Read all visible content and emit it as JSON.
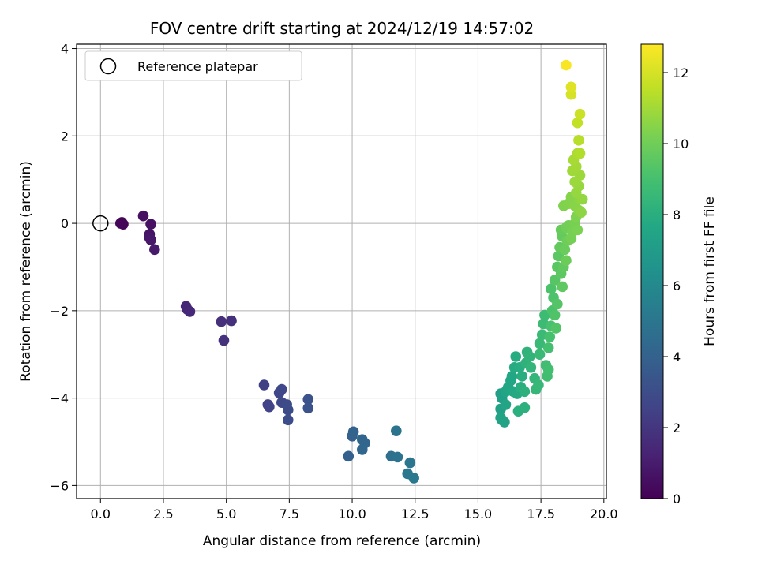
{
  "chart_data": {
    "type": "scatter",
    "title": "FOV centre drift starting at 2024/12/19 14:57:02",
    "xlabel": "Angular distance from reference (arcmin)",
    "ylabel": "Rotation from reference (arcmin)",
    "xlim": [
      -0.95,
      20.1
    ],
    "ylim": [
      -6.3,
      4.1
    ],
    "xticks": [
      0.0,
      2.5,
      5.0,
      7.5,
      10.0,
      12.5,
      15.0,
      17.5,
      20.0
    ],
    "xtick_labels": [
      "0.0",
      "2.5",
      "5.0",
      "7.5",
      "10.0",
      "12.5",
      "15.0",
      "17.5",
      "20.0"
    ],
    "yticks": [
      -6,
      -4,
      -2,
      0,
      2,
      4
    ],
    "ytick_labels": [
      "−6",
      "−4",
      "−2",
      "0",
      "2",
      "4"
    ],
    "grid": true,
    "legend": {
      "placement": "top-left",
      "entries": [
        "Reference platepar"
      ]
    },
    "reference_point": {
      "x": 0.0,
      "y": 0.0,
      "marker": "open-circle",
      "color": "#000000"
    },
    "colorbar": {
      "label": "Hours from first FF file",
      "colormap": "viridis",
      "range": [
        0,
        12.8
      ],
      "ticks": [
        0,
        2,
        4,
        6,
        8,
        10,
        12
      ],
      "tick_labels": [
        "0",
        "2",
        "4",
        "6",
        "8",
        "10",
        "12"
      ]
    },
    "series": [
      {
        "color_by": "hours",
        "points": [
          {
            "x": 0.85,
            "y": 0.02,
            "h": 0.1
          },
          {
            "x": 0.9,
            "y": -0.02,
            "h": 0.15
          },
          {
            "x": 0.8,
            "y": 0.0,
            "h": 0.2
          },
          {
            "x": 1.7,
            "y": 0.17,
            "h": 0.5
          },
          {
            "x": 2.0,
            "y": -0.02,
            "h": 0.6
          },
          {
            "x": 1.95,
            "y": -0.25,
            "h": 0.7
          },
          {
            "x": 1.95,
            "y": -0.33,
            "h": 0.75
          },
          {
            "x": 2.0,
            "y": -0.38,
            "h": 0.8
          },
          {
            "x": 2.15,
            "y": -0.6,
            "h": 0.9
          },
          {
            "x": 3.4,
            "y": -1.9,
            "h": 1.3
          },
          {
            "x": 3.45,
            "y": -1.97,
            "h": 1.35
          },
          {
            "x": 3.55,
            "y": -2.02,
            "h": 1.4
          },
          {
            "x": 4.8,
            "y": -2.25,
            "h": 1.7
          },
          {
            "x": 5.2,
            "y": -2.23,
            "h": 1.75
          },
          {
            "x": 4.9,
            "y": -2.68,
            "h": 1.8
          },
          {
            "x": 6.5,
            "y": -3.7,
            "h": 2.4
          },
          {
            "x": 6.65,
            "y": -4.15,
            "h": 2.5
          },
          {
            "x": 6.7,
            "y": -4.2,
            "h": 2.55
          },
          {
            "x": 7.1,
            "y": -3.88,
            "h": 2.7
          },
          {
            "x": 7.2,
            "y": -3.8,
            "h": 2.75
          },
          {
            "x": 7.2,
            "y": -4.1,
            "h": 2.8
          },
          {
            "x": 7.4,
            "y": -4.15,
            "h": 2.9
          },
          {
            "x": 7.45,
            "y": -4.27,
            "h": 2.95
          },
          {
            "x": 7.45,
            "y": -4.5,
            "h": 3.0
          },
          {
            "x": 8.25,
            "y": -4.03,
            "h": 3.2
          },
          {
            "x": 8.25,
            "y": -4.23,
            "h": 3.25
          },
          {
            "x": 9.85,
            "y": -5.33,
            "h": 3.9
          },
          {
            "x": 10.0,
            "y": -4.87,
            "h": 4.0
          },
          {
            "x": 10.05,
            "y": -4.77,
            "h": 4.05
          },
          {
            "x": 10.4,
            "y": -4.95,
            "h": 4.15
          },
          {
            "x": 10.5,
            "y": -5.03,
            "h": 4.2
          },
          {
            "x": 10.4,
            "y": -5.18,
            "h": 4.25
          },
          {
            "x": 11.55,
            "y": -5.33,
            "h": 4.7
          },
          {
            "x": 11.8,
            "y": -5.35,
            "h": 4.8
          },
          {
            "x": 11.75,
            "y": -4.75,
            "h": 4.85
          },
          {
            "x": 12.3,
            "y": -5.48,
            "h": 5.0
          },
          {
            "x": 12.2,
            "y": -5.73,
            "h": 5.05
          },
          {
            "x": 12.45,
            "y": -5.83,
            "h": 5.1
          },
          {
            "x": 15.9,
            "y": -3.9,
            "h": 7.2
          },
          {
            "x": 15.95,
            "y": -4.0,
            "h": 7.25
          },
          {
            "x": 15.9,
            "y": -4.25,
            "h": 7.3
          },
          {
            "x": 15.95,
            "y": -4.5,
            "h": 7.35
          },
          {
            "x": 16.05,
            "y": -4.55,
            "h": 7.4
          },
          {
            "x": 15.9,
            "y": -4.45,
            "h": 7.4
          },
          {
            "x": 16.1,
            "y": -4.15,
            "h": 7.45
          },
          {
            "x": 16.1,
            "y": -3.85,
            "h": 7.5
          },
          {
            "x": 16.2,
            "y": -3.75,
            "h": 7.55
          },
          {
            "x": 16.3,
            "y": -3.6,
            "h": 7.6
          },
          {
            "x": 16.35,
            "y": -3.5,
            "h": 7.65
          },
          {
            "x": 16.4,
            "y": -3.85,
            "h": 7.7
          },
          {
            "x": 16.55,
            "y": -3.9,
            "h": 7.75
          },
          {
            "x": 16.45,
            "y": -3.3,
            "h": 7.8
          },
          {
            "x": 16.5,
            "y": -3.05,
            "h": 7.85
          },
          {
            "x": 16.65,
            "y": -3.3,
            "h": 7.9
          },
          {
            "x": 16.75,
            "y": -3.5,
            "h": 7.95
          },
          {
            "x": 16.7,
            "y": -3.75,
            "h": 8.0
          },
          {
            "x": 16.6,
            "y": -4.3,
            "h": 8.05
          },
          {
            "x": 16.85,
            "y": -4.22,
            "h": 8.1
          },
          {
            "x": 16.85,
            "y": -3.85,
            "h": 8.15
          },
          {
            "x": 16.9,
            "y": -3.2,
            "h": 8.2
          },
          {
            "x": 16.95,
            "y": -2.95,
            "h": 8.25
          },
          {
            "x": 17.05,
            "y": -3.05,
            "h": 8.3
          },
          {
            "x": 17.1,
            "y": -3.3,
            "h": 8.35
          },
          {
            "x": 17.25,
            "y": -3.55,
            "h": 8.4
          },
          {
            "x": 17.3,
            "y": -3.8,
            "h": 8.45
          },
          {
            "x": 17.4,
            "y": -3.7,
            "h": 8.5
          },
          {
            "x": 17.45,
            "y": -3.0,
            "h": 8.55
          },
          {
            "x": 17.45,
            "y": -2.75,
            "h": 8.6
          },
          {
            "x": 17.55,
            "y": -2.55,
            "h": 8.65
          },
          {
            "x": 17.6,
            "y": -2.3,
            "h": 8.7
          },
          {
            "x": 17.65,
            "y": -2.1,
            "h": 8.75
          },
          {
            "x": 17.7,
            "y": -3.25,
            "h": 8.8
          },
          {
            "x": 17.75,
            "y": -3.5,
            "h": 8.85
          },
          {
            "x": 17.8,
            "y": -3.35,
            "h": 8.9
          },
          {
            "x": 17.8,
            "y": -2.85,
            "h": 8.95
          },
          {
            "x": 17.85,
            "y": -2.6,
            "h": 9.0
          },
          {
            "x": 17.9,
            "y": -2.35,
            "h": 9.05
          },
          {
            "x": 17.95,
            "y": -2.0,
            "h": 9.1
          },
          {
            "x": 17.9,
            "y": -1.5,
            "h": 9.15
          },
          {
            "x": 18.0,
            "y": -1.7,
            "h": 9.2
          },
          {
            "x": 18.05,
            "y": -2.1,
            "h": 9.25
          },
          {
            "x": 18.1,
            "y": -2.4,
            "h": 9.3
          },
          {
            "x": 18.15,
            "y": -1.85,
            "h": 9.35
          },
          {
            "x": 18.05,
            "y": -1.3,
            "h": 9.4
          },
          {
            "x": 18.15,
            "y": -1.0,
            "h": 9.45
          },
          {
            "x": 18.2,
            "y": -0.75,
            "h": 9.5
          },
          {
            "x": 18.3,
            "y": -1.15,
            "h": 9.55
          },
          {
            "x": 18.35,
            "y": -1.45,
            "h": 9.6
          },
          {
            "x": 18.4,
            "y": -1.0,
            "h": 9.65
          },
          {
            "x": 18.25,
            "y": -0.55,
            "h": 9.7
          },
          {
            "x": 18.35,
            "y": -0.3,
            "h": 9.75
          },
          {
            "x": 18.3,
            "y": -0.15,
            "h": 9.8
          },
          {
            "x": 18.45,
            "y": -0.6,
            "h": 9.85
          },
          {
            "x": 18.5,
            "y": -0.85,
            "h": 9.9
          },
          {
            "x": 18.55,
            "y": -0.4,
            "h": 9.95
          },
          {
            "x": 18.5,
            "y": -0.1,
            "h": 10.0
          },
          {
            "x": 18.6,
            "y": -0.05,
            "h": 10.05
          },
          {
            "x": 18.7,
            "y": -0.35,
            "h": 10.1
          },
          {
            "x": 18.75,
            "y": -0.2,
            "h": 10.15
          },
          {
            "x": 18.85,
            "y": 0.0,
            "h": 10.2
          },
          {
            "x": 18.95,
            "y": -0.15,
            "h": 10.25
          },
          {
            "x": 18.9,
            "y": 0.15,
            "h": 10.3
          },
          {
            "x": 18.4,
            "y": 0.4,
            "h": 10.35
          },
          {
            "x": 18.6,
            "y": 0.45,
            "h": 10.4
          },
          {
            "x": 18.7,
            "y": 0.6,
            "h": 10.45
          },
          {
            "x": 18.85,
            "y": 0.4,
            "h": 10.5
          },
          {
            "x": 19.0,
            "y": 0.3,
            "h": 10.55
          },
          {
            "x": 19.1,
            "y": 0.25,
            "h": 10.6
          },
          {
            "x": 19.05,
            "y": 0.55,
            "h": 10.65
          },
          {
            "x": 19.15,
            "y": 0.55,
            "h": 10.7
          },
          {
            "x": 18.9,
            "y": 0.7,
            "h": 10.75
          },
          {
            "x": 19.0,
            "y": 0.85,
            "h": 10.8
          },
          {
            "x": 18.85,
            "y": 0.95,
            "h": 10.85
          },
          {
            "x": 19.05,
            "y": 1.1,
            "h": 10.9
          },
          {
            "x": 18.75,
            "y": 1.2,
            "h": 10.95
          },
          {
            "x": 18.9,
            "y": 1.3,
            "h": 11.0
          },
          {
            "x": 18.8,
            "y": 1.45,
            "h": 11.1
          },
          {
            "x": 18.95,
            "y": 1.6,
            "h": 11.2
          },
          {
            "x": 19.05,
            "y": 1.6,
            "h": 11.3
          },
          {
            "x": 19.0,
            "y": 1.9,
            "h": 11.4
          },
          {
            "x": 18.95,
            "y": 2.3,
            "h": 11.6
          },
          {
            "x": 19.05,
            "y": 2.5,
            "h": 11.8
          },
          {
            "x": 18.7,
            "y": 2.95,
            "h": 12.0
          },
          {
            "x": 18.7,
            "y": 3.12,
            "h": 12.2
          },
          {
            "x": 18.5,
            "y": 3.62,
            "h": 12.7
          }
        ]
      }
    ]
  }
}
